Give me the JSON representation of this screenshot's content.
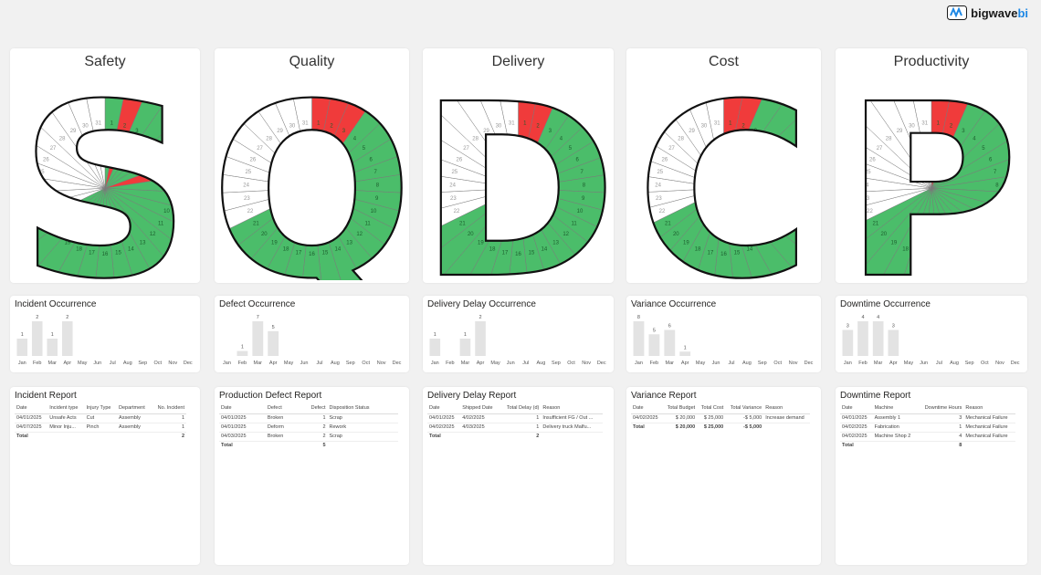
{
  "brand": {
    "name_main": "bigwave",
    "name_accent": "bi"
  },
  "months": [
    "Jan",
    "Feb",
    "Mar",
    "Apr",
    "May",
    "Jun",
    "Jul",
    "Aug",
    "Sep",
    "Oct",
    "Nov",
    "Dec"
  ],
  "colors": {
    "good": "#4bbd6a",
    "bad": "#f03b3b",
    "empty": "#ffffff",
    "bar": "#e3e3e3"
  },
  "letters": [
    {
      "title": "Safety",
      "glyph": "S",
      "days": 31,
      "bad": [
        2,
        7
      ],
      "elapsed": 21
    },
    {
      "title": "Quality",
      "glyph": "Q",
      "days": 31,
      "bad": [
        1,
        2,
        3
      ],
      "elapsed": 21
    },
    {
      "title": "Delivery",
      "glyph": "D",
      "days": 31,
      "bad": [
        1,
        2
      ],
      "elapsed": 21
    },
    {
      "title": "Cost",
      "glyph": "C",
      "days": 31,
      "bad": [
        1,
        2
      ],
      "elapsed": 21
    },
    {
      "title": "Productivity",
      "glyph": "P",
      "days": 31,
      "bad": [
        1,
        2
      ],
      "elapsed": 21
    }
  ],
  "occurrences": [
    {
      "title": "Incident Occurrence",
      "values": [
        1,
        2,
        1,
        2,
        null,
        null,
        null,
        null,
        null,
        null,
        null,
        null
      ]
    },
    {
      "title": "Defect Occurrence",
      "values": [
        null,
        1,
        7,
        5,
        null,
        null,
        null,
        null,
        null,
        null,
        null,
        null
      ]
    },
    {
      "title": "Delivery Delay Occurrence",
      "values": [
        1,
        null,
        1,
        2,
        null,
        null,
        null,
        null,
        null,
        null,
        null,
        null
      ]
    },
    {
      "title": "Variance Occurrence",
      "values": [
        8,
        5,
        6,
        1,
        null,
        null,
        null,
        null,
        null,
        null,
        null,
        null
      ]
    },
    {
      "title": "Downtime Occurrence",
      "values": [
        3,
        4,
        4,
        3,
        null,
        null,
        null,
        null,
        null,
        null,
        null,
        null
      ]
    }
  ],
  "reports": [
    {
      "title": "Incident Report",
      "columns": [
        "Date",
        "Incident type",
        "Injury Type",
        "Department",
        "No. Incident"
      ],
      "numeric": [
        4
      ],
      "rows": [
        [
          "04/01/2025",
          "Unsafe Acts",
          "Cut",
          "Assembly",
          "1"
        ],
        [
          "04/07/2025",
          "Minor Inju...",
          "Pinch",
          "Assembly",
          "1"
        ]
      ],
      "total": [
        "Total",
        "",
        "",
        "",
        "2"
      ]
    },
    {
      "title": "Production Defect Report",
      "columns": [
        "Date",
        "Defect",
        "Defect",
        "Disposition Status"
      ],
      "numeric": [
        2
      ],
      "rows": [
        [
          "04/01/2025",
          "Broken",
          "1",
          "Scrap"
        ],
        [
          "04/01/2025",
          "Deform",
          "2",
          "Rework"
        ],
        [
          "04/03/2025",
          "Broken",
          "2",
          "Scrap"
        ]
      ],
      "total": [
        "Total",
        "",
        "5",
        ""
      ]
    },
    {
      "title": "Delivery Delay Report",
      "columns": [
        "Date",
        "Shipped Date",
        "Total Delay (d)",
        "Reason"
      ],
      "numeric": [
        2
      ],
      "rows": [
        [
          "04/01/2025",
          "4/02/2025",
          "1",
          "Insufficient FG / Out ..."
        ],
        [
          "04/02/2025",
          "4/03/2025",
          "1",
          "Delivery truck Malfu..."
        ]
      ],
      "total": [
        "Total",
        "",
        "2",
        ""
      ]
    },
    {
      "title": "Variance Report",
      "columns": [
        "Date",
        "Total Budget",
        "Total Cost",
        "Total Variance",
        "Reason"
      ],
      "numeric": [
        1,
        2,
        3
      ],
      "rows": [
        [
          "04/02/2025",
          "$ 20,000",
          "$ 25,000",
          "-$ 5,000",
          "Increase demand"
        ]
      ],
      "total": [
        "Total",
        "$ 20,000",
        "$ 25,000",
        "-$ 5,000",
        ""
      ]
    },
    {
      "title": "Downtime Report",
      "columns": [
        "Date",
        "Machine",
        "Downtime Hours",
        "Reason"
      ],
      "numeric": [
        2
      ],
      "rows": [
        [
          "04/01/2025",
          "Assembly 1",
          "3",
          "Mechanical Failure"
        ],
        [
          "04/02/2025",
          "Fabrication",
          "1",
          "Mechanical Failure"
        ],
        [
          "04/02/2025",
          "Machine Shop 2",
          "4",
          "Mechanical Failure"
        ]
      ],
      "total": [
        "Total",
        "",
        "8",
        ""
      ]
    }
  ]
}
